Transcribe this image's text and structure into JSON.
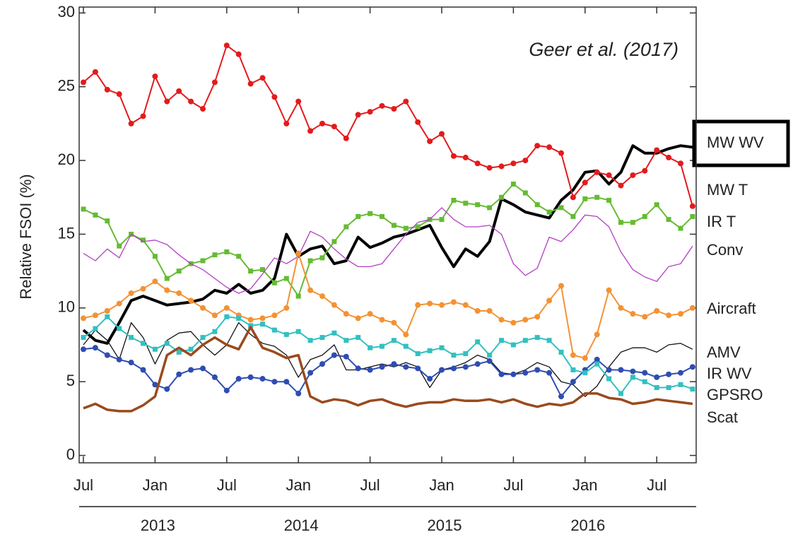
{
  "chart_data": {
    "type": "line",
    "y_label": "Relative FSOI (%)",
    "annotation": "Geer et al. (2017)",
    "x": [
      "2012-07",
      "2012-08",
      "2012-09",
      "2012-10",
      "2012-11",
      "2012-12",
      "2013-01",
      "2013-02",
      "2013-03",
      "2013-04",
      "2013-05",
      "2013-06",
      "2013-07",
      "2013-08",
      "2013-09",
      "2013-10",
      "2013-11",
      "2013-12",
      "2014-01",
      "2014-02",
      "2014-03",
      "2014-04",
      "2014-05",
      "2014-06",
      "2014-07",
      "2014-08",
      "2014-09",
      "2014-10",
      "2014-11",
      "2014-12",
      "2015-01",
      "2015-02",
      "2015-03",
      "2015-04",
      "2015-05",
      "2015-06",
      "2015-07",
      "2015-08",
      "2015-09",
      "2015-10",
      "2015-11",
      "2015-12",
      "2016-01",
      "2016-02",
      "2016-03",
      "2016-04",
      "2016-05",
      "2016-06",
      "2016-07",
      "2016-08",
      "2016-09",
      "2016-10"
    ],
    "xticks": [
      {
        "value": "2012-07",
        "label": "Jul"
      },
      {
        "value": "2013-01",
        "label": "Jan"
      },
      {
        "value": "2013-07",
        "label": "Jul"
      },
      {
        "value": "2014-01",
        "label": "Jan"
      },
      {
        "value": "2014-07",
        "label": "Jul"
      },
      {
        "value": "2015-01",
        "label": "Jan"
      },
      {
        "value": "2015-07",
        "label": "Jul"
      },
      {
        "value": "2016-01",
        "label": "Jan"
      },
      {
        "value": "2016-07",
        "label": "Jul"
      }
    ],
    "x2ticks": [
      {
        "value": "2013-01",
        "label": "2013"
      },
      {
        "value": "2014-01",
        "label": "2014"
      },
      {
        "value": "2015-01",
        "label": "2015"
      },
      {
        "value": "2016-01",
        "label": "2016"
      }
    ],
    "ylim": [
      -0.5,
      30.4
    ],
    "yticks": [
      0,
      5,
      10,
      15,
      20,
      25,
      30
    ],
    "highlight": "MW WV",
    "series": [
      {
        "name": "MW WV",
        "color": "#000000",
        "line_width": 4,
        "marker": "none",
        "values": [
          8.5,
          7.8,
          7.6,
          9.0,
          10.5,
          10.8,
          10.5,
          10.2,
          10.3,
          10.4,
          10.6,
          11.2,
          11.0,
          11.6,
          11.0,
          11.2,
          12.0,
          15.0,
          13.5,
          14.0,
          14.2,
          13.0,
          13.2,
          14.8,
          14.1,
          14.4,
          14.8,
          15.0,
          15.3,
          15.6,
          14.1,
          12.8,
          14.0,
          13.5,
          14.5,
          17.4,
          17.0,
          16.5,
          16.3,
          16.1,
          17.3,
          18.0,
          19.2,
          19.3,
          18.4,
          19.2,
          21.0,
          20.5,
          20.5,
          20.8,
          21.0,
          20.9
        ]
      },
      {
        "name": "MW T",
        "color": "#e41a1c",
        "line_width": 2,
        "marker": "circle",
        "values": [
          25.3,
          26.0,
          24.8,
          24.5,
          22.5,
          23.0,
          25.7,
          24.0,
          24.7,
          24.0,
          23.5,
          25.3,
          27.8,
          27.2,
          25.2,
          25.6,
          24.3,
          22.5,
          24.0,
          22.0,
          22.5,
          22.3,
          21.5,
          23.1,
          23.3,
          23.7,
          23.5,
          24.0,
          22.6,
          21.3,
          21.8,
          20.3,
          20.2,
          19.8,
          19.5,
          19.6,
          19.8,
          20.0,
          21.0,
          20.9,
          20.5,
          17.5,
          18.5,
          19.2,
          19.0,
          18.3,
          19.0,
          19.3,
          20.7,
          20.2,
          19.8,
          16.9
        ]
      },
      {
        "name": "IR T",
        "color": "#66bb33",
        "line_width": 2,
        "marker": "square",
        "values": [
          16.7,
          16.3,
          15.9,
          14.2,
          15.0,
          14.6,
          13.5,
          12.0,
          12.5,
          13.0,
          13.2,
          13.6,
          13.8,
          13.5,
          12.5,
          12.6,
          11.7,
          12.0,
          10.8,
          13.2,
          13.4,
          14.5,
          15.5,
          16.2,
          16.4,
          16.2,
          15.6,
          15.4,
          15.5,
          16.0,
          16.0,
          17.3,
          17.1,
          17.0,
          16.8,
          17.5,
          18.4,
          17.8,
          17.0,
          16.5,
          16.8,
          16.2,
          17.4,
          17.5,
          17.3,
          15.8,
          15.8,
          16.2,
          17.0,
          16.0,
          15.4,
          16.2
        ]
      },
      {
        "name": "Conv",
        "color": "#b040c0",
        "line_width": 1.3,
        "marker": "none",
        "values": [
          13.7,
          13.2,
          14.0,
          13.4,
          15.0,
          14.5,
          14.6,
          14.3,
          13.6,
          13.0,
          12.6,
          12.0,
          11.4,
          11.0,
          11.3,
          12.3,
          13.4,
          13.0,
          13.5,
          15.2,
          14.8,
          14.0,
          13.3,
          12.8,
          12.8,
          13.0,
          14.0,
          15.0,
          15.8,
          16.0,
          16.8,
          16.0,
          15.5,
          15.5,
          15.6,
          15.0,
          13.0,
          12.2,
          12.7,
          14.8,
          14.5,
          15.3,
          16.3,
          16.2,
          15.5,
          13.8,
          12.6,
          12.1,
          11.8,
          12.8,
          13.0,
          14.2
        ]
      },
      {
        "name": "Aircraft",
        "color": "#f39234",
        "line_width": 2,
        "marker": "circle",
        "values": [
          9.3,
          9.5,
          9.8,
          10.3,
          11.0,
          11.3,
          11.8,
          11.2,
          11.0,
          10.5,
          10.0,
          9.5,
          10.0,
          9.5,
          9.2,
          9.3,
          9.5,
          10.0,
          13.7,
          11.2,
          10.8,
          10.2,
          9.6,
          9.3,
          9.6,
          9.2,
          9.0,
          8.2,
          10.2,
          10.3,
          10.2,
          10.4,
          10.2,
          9.8,
          9.8,
          9.2,
          9.0,
          9.2,
          9.4,
          10.5,
          11.5,
          6.8,
          6.6,
          8.2,
          11.2,
          10.0,
          9.6,
          9.4,
          9.8,
          9.5,
          9.6,
          10.0
        ]
      },
      {
        "name": "AMV",
        "color": "#111111",
        "line_width": 1.3,
        "marker": "none",
        "values": [
          7.5,
          8.5,
          7.8,
          6.5,
          9.0,
          8.0,
          6.2,
          7.8,
          8.3,
          8.4,
          7.5,
          6.8,
          7.5,
          9.0,
          8.2,
          7.6,
          7.4,
          6.8,
          5.3,
          6.5,
          6.8,
          7.5,
          5.8,
          5.8,
          6.0,
          6.2,
          6.0,
          6.3,
          6.0,
          4.6,
          5.8,
          6.0,
          6.3,
          6.8,
          6.5,
          5.6,
          5.5,
          5.8,
          6.3,
          6.0,
          5.0,
          4.8,
          4.0,
          4.7,
          6.0,
          7.0,
          7.3,
          7.3,
          7.0,
          7.5,
          7.6,
          7.2
        ]
      },
      {
        "name": "IR WV",
        "color": "#2f4db0",
        "line_width": 2,
        "marker": "circle",
        "values": [
          7.2,
          7.3,
          6.8,
          6.5,
          6.3,
          5.8,
          4.8,
          4.5,
          5.5,
          5.8,
          5.9,
          5.3,
          4.4,
          5.2,
          5.3,
          5.2,
          5.0,
          5.0,
          4.2,
          5.6,
          6.2,
          6.8,
          6.7,
          5.9,
          5.8,
          6.0,
          6.2,
          6.0,
          5.9,
          5.2,
          5.8,
          5.9,
          6.0,
          6.2,
          6.4,
          5.5,
          5.5,
          5.6,
          5.8,
          5.6,
          4.0,
          5.0,
          5.8,
          6.5,
          5.8,
          5.8,
          5.7,
          5.6,
          5.3,
          5.5,
          5.6,
          6.0
        ]
      },
      {
        "name": "GPSRO",
        "color": "#33c0c0",
        "line_width": 2,
        "marker": "square",
        "values": [
          8.0,
          8.6,
          9.4,
          8.6,
          8.0,
          7.6,
          7.2,
          7.6,
          7.0,
          7.2,
          8.0,
          8.4,
          9.4,
          9.3,
          8.8,
          8.9,
          8.5,
          8.2,
          8.4,
          7.8,
          8.0,
          8.3,
          7.8,
          8.0,
          7.3,
          7.4,
          7.8,
          7.4,
          6.9,
          7.1,
          7.3,
          6.8,
          6.9,
          7.7,
          6.8,
          7.8,
          7.5,
          7.8,
          8.0,
          7.8,
          7.0,
          5.8,
          5.6,
          6.2,
          5.2,
          4.2,
          5.3,
          5.0,
          4.6,
          4.6,
          4.8,
          4.5
        ]
      },
      {
        "name": "Scat",
        "color": "#9a4a1c",
        "line_width": 3.5,
        "marker": "none",
        "values": [
          3.2,
          3.5,
          3.1,
          3.0,
          3.0,
          3.4,
          4.0,
          6.8,
          7.3,
          6.8,
          7.5,
          8.0,
          7.5,
          7.2,
          8.7,
          7.3,
          7.0,
          6.6,
          6.8,
          4.0,
          3.6,
          3.8,
          3.7,
          3.4,
          3.7,
          3.8,
          3.5,
          3.3,
          3.5,
          3.6,
          3.6,
          3.8,
          3.7,
          3.7,
          3.8,
          3.6,
          3.8,
          3.5,
          3.3,
          3.5,
          3.4,
          3.6,
          4.2,
          4.2,
          3.9,
          3.8,
          3.5,
          3.6,
          3.8,
          3.7,
          3.6,
          3.5
        ]
      }
    ]
  }
}
